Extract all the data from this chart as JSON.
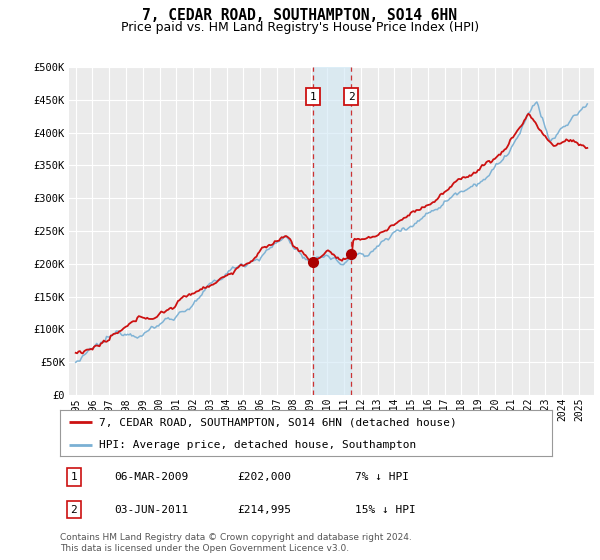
{
  "title": "7, CEDAR ROAD, SOUTHAMPTON, SO14 6HN",
  "subtitle": "Price paid vs. HM Land Registry's House Price Index (HPI)",
  "ylim": [
    0,
    500000
  ],
  "yticks": [
    0,
    50000,
    100000,
    150000,
    200000,
    250000,
    300000,
    350000,
    400000,
    450000,
    500000
  ],
  "ytick_labels": [
    "£0",
    "£50K",
    "£100K",
    "£150K",
    "£200K",
    "£250K",
    "£300K",
    "£350K",
    "£400K",
    "£450K",
    "£500K"
  ],
  "background_color": "#ffffff",
  "plot_bg_color": "#ebebeb",
  "grid_color": "#ffffff",
  "hpi_color": "#7ab0d4",
  "price_color": "#cc1111",
  "marker_color": "#aa0000",
  "transaction1_date": 2009.17,
  "transaction2_date": 2011.42,
  "transaction1_price": 202000,
  "transaction2_price": 214995,
  "span_color": "#d0e8f5",
  "span_alpha": 0.6,
  "legend_entries": [
    "7, CEDAR ROAD, SOUTHAMPTON, SO14 6HN (detached house)",
    "HPI: Average price, detached house, Southampton"
  ],
  "table_rows": [
    {
      "num": "1",
      "date": "06-MAR-2009",
      "price": "£202,000",
      "hpi": "7% ↓ HPI"
    },
    {
      "num": "2",
      "date": "03-JUN-2011",
      "price": "£214,995",
      "hpi": "15% ↓ HPI"
    }
  ],
  "footnote": "Contains HM Land Registry data © Crown copyright and database right 2024.\nThis data is licensed under the Open Government Licence v3.0.",
  "title_fontsize": 10.5,
  "subtitle_fontsize": 9,
  "axis_fontsize": 7.5,
  "mono_font": "DejaVu Sans Mono"
}
